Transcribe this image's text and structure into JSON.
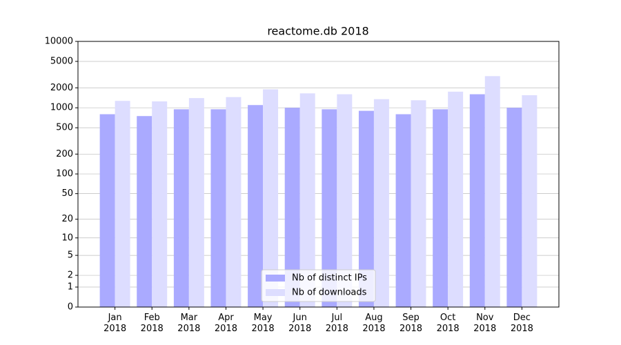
{
  "chart_data": {
    "type": "bar",
    "title": "reactome.db 2018",
    "categories": [
      "Jan 2018",
      "Feb 2018",
      "Mar 2018",
      "Apr 2018",
      "May 2018",
      "Jun 2018",
      "Jul 2018",
      "Aug 2018",
      "Sep 2018",
      "Oct 2018",
      "Nov 2018",
      "Dec 2018"
    ],
    "series": [
      {
        "name": "Nb of distinct IPs",
        "color": "#aaaaff",
        "values": [
          800,
          750,
          950,
          950,
          1100,
          1000,
          950,
          900,
          800,
          950,
          1600,
          1000
        ]
      },
      {
        "name": "Nb of downloads",
        "color": "#ddddff",
        "values": [
          1270,
          1250,
          1400,
          1450,
          1900,
          1650,
          1600,
          1350,
          1300,
          1750,
          3000,
          1550
        ]
      }
    ],
    "yscale": "log1p",
    "ylim": [
      0,
      10000
    ],
    "yticks": [
      0,
      1,
      2,
      5,
      10,
      20,
      50,
      100,
      200,
      500,
      1000,
      2000,
      5000,
      10000
    ],
    "grid": true,
    "legend": "lower center"
  }
}
